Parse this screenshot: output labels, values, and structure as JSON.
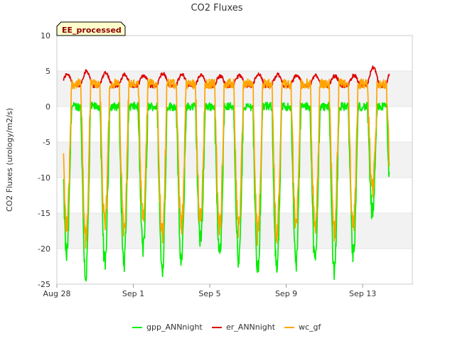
{
  "chart_data": {
    "type": "line",
    "title": "CO2 Fluxes",
    "badge": "EE_processed",
    "ylabel": "CO2 Fluxes (urology/m2/s)",
    "xlabel": "",
    "xlim": [
      0,
      18.6
    ],
    "ylim": [
      -25,
      10
    ],
    "yticks": [
      10,
      5,
      0,
      -5,
      -10,
      -15,
      -20,
      -25
    ],
    "xticks": [
      {
        "day": 0,
        "label": "Aug 28"
      },
      {
        "day": 4,
        "label": "Sep 1"
      },
      {
        "day": 8,
        "label": "Sep 5"
      },
      {
        "day": 12,
        "label": "Sep 9"
      },
      {
        "day": 16,
        "label": "Sep 13"
      }
    ],
    "x_start_day": 0.35,
    "x_end_day": 17.4,
    "series": [
      {
        "name": "gpp_ANNnight",
        "color": "#00ee00",
        "night": 0.0,
        "day_min": [
          -21,
          -24,
          -22,
          -22,
          -20,
          -23,
          -22,
          -19,
          -21,
          -22,
          -23,
          -23,
          -22,
          -22,
          -23,
          -21,
          -15
        ]
      },
      {
        "name": "er_ANNnight",
        "color": "#dd0000",
        "night": 2.9,
        "day_peak": [
          4.6,
          5.0,
          4.8,
          4.5,
          4.4,
          4.7,
          4.5,
          4.4,
          4.3,
          4.4,
          4.6,
          4.5,
          4.4,
          4.4,
          4.3,
          4.4,
          5.5
        ]
      },
      {
        "name": "wc_gf",
        "color": "#ffa500",
        "night": 3.2,
        "day_min": [
          -17,
          -19,
          -17,
          -17,
          -16,
          -18,
          -17,
          -16,
          -17,
          -17,
          -18,
          -18,
          -17,
          -17,
          -18,
          -17,
          -12
        ]
      }
    ],
    "legend_position": "bottom",
    "grid": true
  }
}
